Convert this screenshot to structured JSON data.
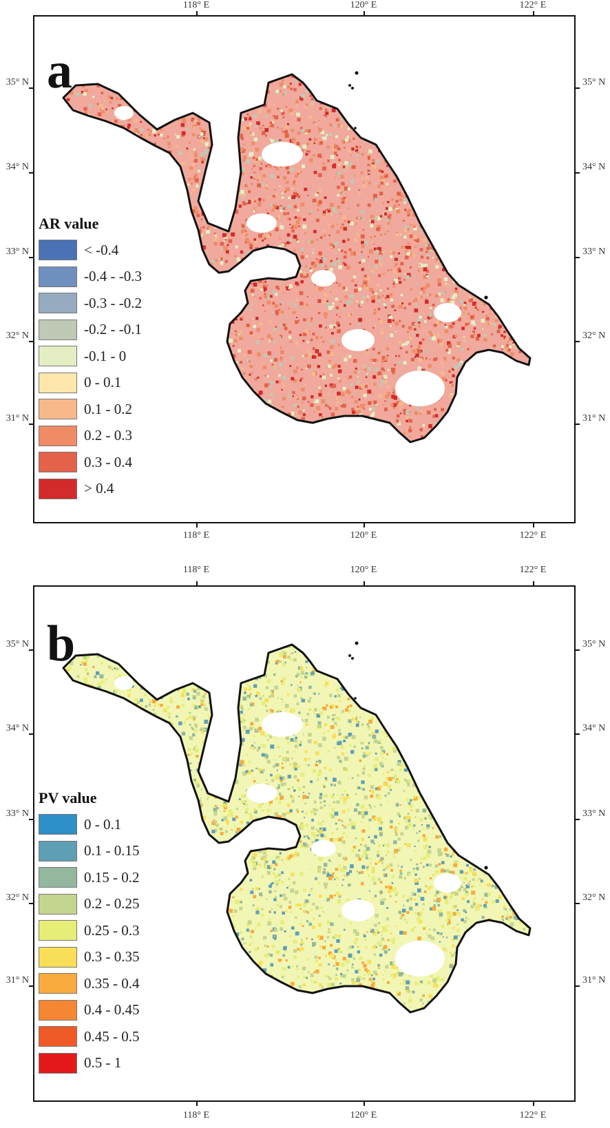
{
  "panels": [
    {
      "id": "a",
      "letter": "a",
      "x_ticks": [
        "118° E",
        "120° E",
        "122° E"
      ],
      "y_ticks": [
        "35° N",
        "34° N",
        "33° N",
        "32° N",
        "31° N"
      ],
      "legend": {
        "title": "AR value",
        "items": [
          {
            "label": "< -0.4",
            "color": "#4a72b5"
          },
          {
            "label": "-0.4 - -0.3",
            "color": "#6f8fbf"
          },
          {
            "label": "-0.3 - -0.2",
            "color": "#95abbf"
          },
          {
            "label": "-0.2 - -0.1",
            "color": "#bfc9b6"
          },
          {
            "label": "-0.1 - 0",
            "color": "#e4eec4"
          },
          {
            "label": "0 - 0.1",
            "color": "#fde7ad"
          },
          {
            "label": "0.1 - 0.2",
            "color": "#f8b98a"
          },
          {
            "label": "0.2 - 0.3",
            "color": "#ef8c66"
          },
          {
            "label": "0.3 - 0.4",
            "color": "#e4624a"
          },
          {
            "label": "> 0.4",
            "color": "#d32b2b"
          }
        ]
      },
      "map_colors": [
        "#e4624a",
        "#ef8c66",
        "#d32b2b",
        "#f8b98a",
        "#bfc9b6",
        "#e4eec4",
        "#ef8c66",
        "#e4624a"
      ]
    },
    {
      "id": "b",
      "letter": "b",
      "x_ticks": [
        "118° E",
        "120° E",
        "122° E"
      ],
      "y_ticks": [
        "35° N",
        "34° N",
        "33° N",
        "32° N",
        "31° N"
      ],
      "legend": {
        "title": "PV value",
        "items": [
          {
            "label": "0 - 0.1",
            "color": "#2e8fc9"
          },
          {
            "label": "0.1 - 0.15",
            "color": "#5f9fb5"
          },
          {
            "label": "0.15 - 0.2",
            "color": "#93b89e"
          },
          {
            "label": "0.2 - 0.25",
            "color": "#c4d58f"
          },
          {
            "label": "0.25 - 0.3",
            "color": "#e6ee78"
          },
          {
            "label": "0.3 - 0.35",
            "color": "#f9df57"
          },
          {
            "label": "0.35 - 0.4",
            "color": "#f8ab3c"
          },
          {
            "label": "0.4 - 0.45",
            "color": "#f58634"
          },
          {
            "label": "0.45 - 0.5",
            "color": "#ef5a26"
          },
          {
            "label": "0.5 - 1",
            "color": "#e3191c"
          }
        ]
      },
      "map_colors": [
        "#e6ee78",
        "#c4d58f",
        "#f9df57",
        "#93b89e",
        "#5f9fb5",
        "#f8ab3c",
        "#e6ee78",
        "#c4d58f"
      ]
    }
  ]
}
